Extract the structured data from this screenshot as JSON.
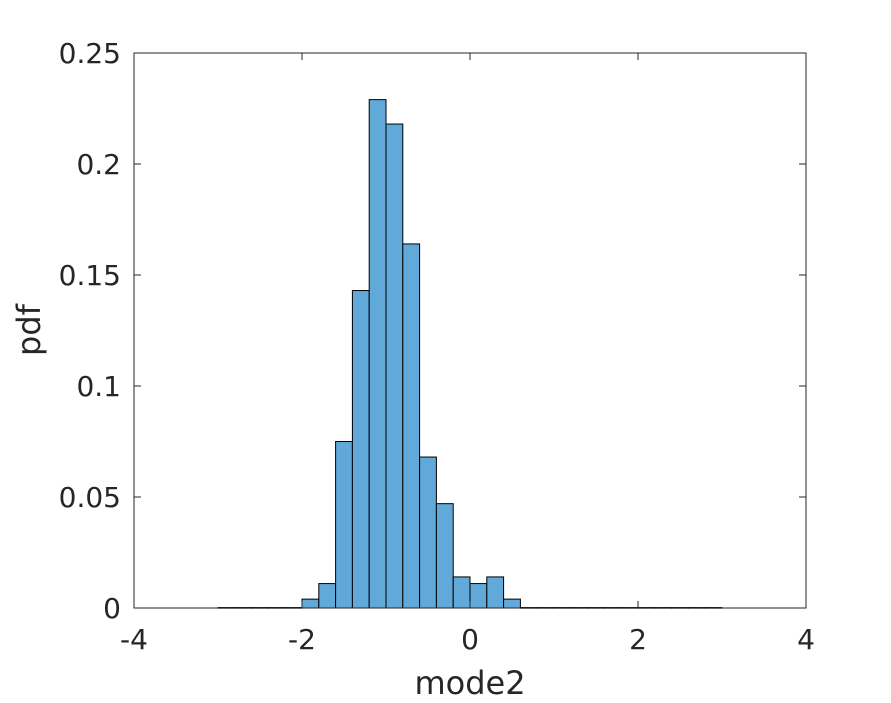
{
  "chart_data": {
    "type": "bar",
    "title": "",
    "xlabel": "mode2",
    "ylabel": "pdf",
    "xlim": [
      -4,
      4
    ],
    "ylim": [
      0,
      0.25
    ],
    "xticks": [
      -4,
      -2,
      0,
      2,
      4
    ],
    "yticks": [
      0,
      0.05,
      0.1,
      0.15,
      0.2,
      0.25
    ],
    "xtick_labels": [
      "-4",
      "-2",
      "0",
      "2",
      "4"
    ],
    "ytick_labels": [
      "0",
      "0.05",
      "0.1",
      "0.15",
      "0.2",
      "0.25"
    ],
    "bar_color": "#61a9d9",
    "edge_color": "#000000",
    "grid": false,
    "bins": [
      {
        "x0": -3.0,
        "x1": -2.8,
        "value": 0.0002
      },
      {
        "x0": -2.8,
        "x1": -2.6,
        "value": 0.0002
      },
      {
        "x0": -2.6,
        "x1": -2.4,
        "value": 0.0002
      },
      {
        "x0": -2.4,
        "x1": -2.2,
        "value": 0.0002
      },
      {
        "x0": -2.2,
        "x1": -2.0,
        "value": 0.0002
      },
      {
        "x0": -2.0,
        "x1": -1.8,
        "value": 0.004
      },
      {
        "x0": -1.8,
        "x1": -1.6,
        "value": 0.011
      },
      {
        "x0": -1.6,
        "x1": -1.4,
        "value": 0.075
      },
      {
        "x0": -1.4,
        "x1": -1.2,
        "value": 0.143
      },
      {
        "x0": -1.2,
        "x1": -1.0,
        "value": 0.229
      },
      {
        "x0": -1.0,
        "x1": -0.8,
        "value": 0.218
      },
      {
        "x0": -0.8,
        "x1": -0.6,
        "value": 0.164
      },
      {
        "x0": -0.6,
        "x1": -0.4,
        "value": 0.068
      },
      {
        "x0": -0.4,
        "x1": -0.2,
        "value": 0.047
      },
      {
        "x0": -0.2,
        "x1": 0.0,
        "value": 0.014
      },
      {
        "x0": 0.0,
        "x1": 0.2,
        "value": 0.011
      },
      {
        "x0": 0.2,
        "x1": 0.4,
        "value": 0.014
      },
      {
        "x0": 0.4,
        "x1": 0.6,
        "value": 0.004
      },
      {
        "x0": 0.6,
        "x1": 0.8,
        "value": 0.0002
      },
      {
        "x0": 0.8,
        "x1": 1.0,
        "value": 0.0002
      },
      {
        "x0": 1.0,
        "x1": 1.2,
        "value": 0.0002
      },
      {
        "x0": 1.2,
        "x1": 1.4,
        "value": 0.0002
      },
      {
        "x0": 1.4,
        "x1": 1.6,
        "value": 0.0002
      },
      {
        "x0": 1.6,
        "x1": 1.8,
        "value": 0.0002
      },
      {
        "x0": 1.8,
        "x1": 2.0,
        "value": 0.0002
      },
      {
        "x0": 2.0,
        "x1": 2.2,
        "value": 0.0002
      },
      {
        "x0": 2.2,
        "x1": 2.4,
        "value": 0.0002
      },
      {
        "x0": 2.4,
        "x1": 2.6,
        "value": 0.0002
      },
      {
        "x0": 2.6,
        "x1": 2.8,
        "value": 0.0002
      },
      {
        "x0": 2.8,
        "x1": 3.0,
        "value": 0.0002
      }
    ]
  }
}
